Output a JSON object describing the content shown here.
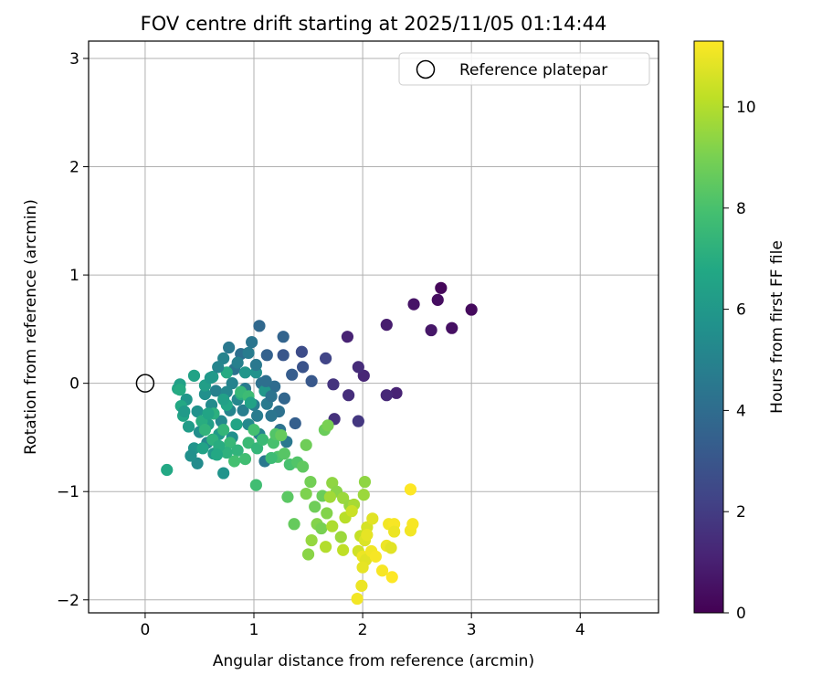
{
  "chart_data": {
    "type": "scatter",
    "title": "FOV centre drift starting at 2025/11/05 01:14:44",
    "xlabel": "Angular distance from reference (arcmin)",
    "ylabel": "Rotation from reference (arcmin)",
    "xlim": [
      -0.52,
      4.72
    ],
    "ylim": [
      -2.12,
      3.16
    ],
    "xticks": [
      0,
      1,
      2,
      3,
      4
    ],
    "yticks": [
      -2,
      -1,
      0,
      1,
      2,
      3
    ],
    "xtick_labels": [
      "0",
      "1",
      "2",
      "3",
      "4"
    ],
    "ytick_labels": [
      "−2",
      "−1",
      "0",
      "1",
      "2",
      "3"
    ],
    "grid": true,
    "legend": {
      "position": "top-right",
      "label": "Reference platepar"
    },
    "reference_point": {
      "x": 0,
      "y": 0
    },
    "colorbar": {
      "label": "Hours from first FF file",
      "min": 0,
      "max": 11.3,
      "ticks": [
        0,
        2,
        4,
        6,
        8,
        10
      ],
      "tick_labels": [
        "0",
        "2",
        "4",
        "6",
        "8",
        "10"
      ],
      "colormap": "viridis"
    },
    "points": [
      {
        "x": 2.72,
        "y": 0.88,
        "t": 0.2
      },
      {
        "x": 3.0,
        "y": 0.68,
        "t": 0.3
      },
      {
        "x": 2.69,
        "y": 0.77,
        "t": 0.4
      },
      {
        "x": 2.47,
        "y": 0.73,
        "t": 0.6
      },
      {
        "x": 2.82,
        "y": 0.51,
        "t": 0.5
      },
      {
        "x": 2.63,
        "y": 0.49,
        "t": 0.7
      },
      {
        "x": 2.22,
        "y": 0.54,
        "t": 0.9
      },
      {
        "x": 1.86,
        "y": 0.43,
        "t": 1.1
      },
      {
        "x": 2.01,
        "y": 0.07,
        "t": 1.2
      },
      {
        "x": 1.96,
        "y": 0.15,
        "t": 1.4
      },
      {
        "x": 2.31,
        "y": -0.09,
        "t": 1.1
      },
      {
        "x": 2.22,
        "y": -0.11,
        "t": 1.3
      },
      {
        "x": 1.73,
        "y": -0.01,
        "t": 1.7
      },
      {
        "x": 1.87,
        "y": -0.11,
        "t": 1.5
      },
      {
        "x": 1.74,
        "y": -0.33,
        "t": 1.6
      },
      {
        "x": 1.96,
        "y": -0.35,
        "t": 1.8
      },
      {
        "x": 1.66,
        "y": 0.23,
        "t": 2.3
      },
      {
        "x": 1.44,
        "y": 0.29,
        "t": 2.6
      },
      {
        "x": 1.45,
        "y": 0.15,
        "t": 2.9
      },
      {
        "x": 1.53,
        "y": 0.02,
        "t": 3.1
      },
      {
        "x": 1.27,
        "y": 0.26,
        "t": 3.0
      },
      {
        "x": 1.35,
        "y": 0.08,
        "t": 3.3
      },
      {
        "x": 1.38,
        "y": -0.37,
        "t": 3.4
      },
      {
        "x": 1.27,
        "y": 0.43,
        "t": 3.6
      },
      {
        "x": 1.12,
        "y": 0.26,
        "t": 3.5
      },
      {
        "x": 1.05,
        "y": 0.53,
        "t": 3.8
      },
      {
        "x": 1.28,
        "y": -0.14,
        "t": 3.7
      },
      {
        "x": 1.19,
        "y": -0.03,
        "t": 4.0
      },
      {
        "x": 1.07,
        "y": 0.0,
        "t": 4.2
      },
      {
        "x": 0.88,
        "y": 0.27,
        "t": 4.1
      },
      {
        "x": 0.98,
        "y": 0.38,
        "t": 4.4
      },
      {
        "x": 0.77,
        "y": 0.33,
        "t": 4.5
      },
      {
        "x": 0.82,
        "y": 0.13,
        "t": 4.3
      },
      {
        "x": 0.92,
        "y": -0.05,
        "t": 4.6
      },
      {
        "x": 1.0,
        "y": -0.2,
        "t": 4.8
      },
      {
        "x": 0.72,
        "y": 0.23,
        "t": 5.0
      },
      {
        "x": 0.65,
        "y": -0.07,
        "t": 4.9
      },
      {
        "x": 0.85,
        "y": -0.15,
        "t": 5.2
      },
      {
        "x": 1.12,
        "y": -0.19,
        "t": 4.6
      },
      {
        "x": 1.23,
        "y": -0.26,
        "t": 4.2
      },
      {
        "x": 1.16,
        "y": -0.3,
        "t": 4.4
      },
      {
        "x": 1.03,
        "y": -0.3,
        "t": 4.7
      },
      {
        "x": 0.78,
        "y": -0.25,
        "t": 5.1
      },
      {
        "x": 0.7,
        "y": -0.35,
        "t": 5.3
      },
      {
        "x": 0.61,
        "y": -0.2,
        "t": 5.4
      },
      {
        "x": 0.55,
        "y": -0.1,
        "t": 5.6
      },
      {
        "x": 0.48,
        "y": -0.26,
        "t": 5.7
      },
      {
        "x": 0.38,
        "y": -0.15,
        "t": 5.9
      },
      {
        "x": 0.5,
        "y": -0.45,
        "t": 5.5
      },
      {
        "x": 0.57,
        "y": -0.55,
        "t": 5.2
      },
      {
        "x": 0.45,
        "y": -0.6,
        "t": 5.8
      },
      {
        "x": 0.63,
        "y": -0.65,
        "t": 6.0
      },
      {
        "x": 0.48,
        "y": -0.74,
        "t": 5.4
      },
      {
        "x": 0.42,
        "y": -0.67,
        "t": 5.6
      },
      {
        "x": 0.72,
        "y": -0.83,
        "t": 5.8
      },
      {
        "x": 1.1,
        "y": -0.72,
        "t": 4.5
      },
      {
        "x": 1.05,
        "y": -0.47,
        "t": 5.0
      },
      {
        "x": 1.24,
        "y": -0.43,
        "t": 4.3
      },
      {
        "x": 1.3,
        "y": -0.54,
        "t": 4.5
      },
      {
        "x": 0.95,
        "y": -0.38,
        "t": 5.3
      },
      {
        "x": 0.8,
        "y": -0.5,
        "t": 5.6
      },
      {
        "x": 0.68,
        "y": -0.47,
        "t": 6.1
      },
      {
        "x": 0.58,
        "y": -0.38,
        "t": 6.3
      },
      {
        "x": 0.4,
        "y": -0.4,
        "t": 6.2
      },
      {
        "x": 0.35,
        "y": -0.3,
        "t": 6.6
      },
      {
        "x": 0.33,
        "y": -0.21,
        "t": 6.8
      },
      {
        "x": 0.3,
        "y": -0.05,
        "t": 6.7
      },
      {
        "x": 0.32,
        "y": -0.01,
        "t": 6.4
      },
      {
        "x": 0.45,
        "y": 0.07,
        "t": 6.5
      },
      {
        "x": 0.55,
        "y": -0.02,
        "t": 6.3
      },
      {
        "x": 0.62,
        "y": 0.06,
        "t": 6.2
      },
      {
        "x": 0.75,
        "y": 0.1,
        "t": 6.9
      },
      {
        "x": 0.92,
        "y": 0.1,
        "t": 5.9
      },
      {
        "x": 1.02,
        "y": 0.1,
        "t": 5.7
      },
      {
        "x": 1.1,
        "y": -0.07,
        "t": 6.0
      },
      {
        "x": 0.88,
        "y": -0.1,
        "t": 7.0
      },
      {
        "x": 0.75,
        "y": -0.2,
        "t": 6.7
      },
      {
        "x": 0.63,
        "y": -0.28,
        "t": 7.1
      },
      {
        "x": 0.52,
        "y": -0.35,
        "t": 7.0
      },
      {
        "x": 0.55,
        "y": -0.43,
        "t": 7.3
      },
      {
        "x": 0.62,
        "y": -0.52,
        "t": 7.2
      },
      {
        "x": 0.72,
        "y": -0.43,
        "t": 7.4
      },
      {
        "x": 0.78,
        "y": -0.55,
        "t": 7.5
      },
      {
        "x": 0.85,
        "y": -0.62,
        "t": 7.3
      },
      {
        "x": 0.95,
        "y": -0.55,
        "t": 7.6
      },
      {
        "x": 1.03,
        "y": -0.6,
        "t": 7.4
      },
      {
        "x": 0.92,
        "y": -0.7,
        "t": 7.8
      },
      {
        "x": 0.82,
        "y": -0.72,
        "t": 7.9
      },
      {
        "x": 0.75,
        "y": -0.64,
        "t": 7.2
      },
      {
        "x": 0.68,
        "y": -0.58,
        "t": 7.0
      },
      {
        "x": 0.88,
        "y": -0.08,
        "t": 7.5
      },
      {
        "x": 0.95,
        "y": -0.12,
        "t": 7.7
      },
      {
        "x": 1.0,
        "y": -0.43,
        "t": 7.9
      },
      {
        "x": 1.08,
        "y": -0.52,
        "t": 7.6
      },
      {
        "x": 1.18,
        "y": -0.55,
        "t": 8.0
      },
      {
        "x": 1.22,
        "y": -0.68,
        "t": 8.1
      },
      {
        "x": 1.28,
        "y": -0.65,
        "t": 8.3
      },
      {
        "x": 1.33,
        "y": -0.75,
        "t": 8.0
      },
      {
        "x": 1.4,
        "y": -0.73,
        "t": 8.2
      },
      {
        "x": 1.45,
        "y": -0.77,
        "t": 8.5
      },
      {
        "x": 1.31,
        "y": -1.05,
        "t": 8.4
      },
      {
        "x": 1.02,
        "y": -0.94,
        "t": 7.8
      },
      {
        "x": 1.2,
        "y": -0.47,
        "t": 8.2
      },
      {
        "x": 1.16,
        "y": -0.69,
        "t": 7.7
      },
      {
        "x": 1.25,
        "y": -0.48,
        "t": 8.6
      },
      {
        "x": 1.48,
        "y": -0.57,
        "t": 8.8
      },
      {
        "x": 1.65,
        "y": -0.43,
        "t": 8.7
      },
      {
        "x": 1.68,
        "y": -0.39,
        "t": 9.0
      },
      {
        "x": 1.52,
        "y": -0.91,
        "t": 8.9
      },
      {
        "x": 1.37,
        "y": -1.3,
        "t": 8.6
      },
      {
        "x": 1.48,
        "y": -1.02,
        "t": 9.1
      },
      {
        "x": 1.56,
        "y": -1.14,
        "t": 8.8
      },
      {
        "x": 1.63,
        "y": -1.04,
        "t": 8.7
      },
      {
        "x": 1.67,
        "y": -1.2,
        "t": 9.2
      },
      {
        "x": 1.72,
        "y": -0.92,
        "t": 9.4
      },
      {
        "x": 1.76,
        "y": -1.0,
        "t": 9.3
      },
      {
        "x": 1.82,
        "y": -1.06,
        "t": 9.6
      },
      {
        "x": 1.88,
        "y": -1.13,
        "t": 9.5
      },
      {
        "x": 1.92,
        "y": -1.12,
        "t": 9.8
      },
      {
        "x": 2.02,
        "y": -0.91,
        "t": 9.4
      },
      {
        "x": 2.01,
        "y": -1.03,
        "t": 9.6
      },
      {
        "x": 1.7,
        "y": -1.05,
        "t": 9.7
      },
      {
        "x": 1.58,
        "y": -1.3,
        "t": 9.2
      },
      {
        "x": 1.62,
        "y": -1.34,
        "t": 9.0
      },
      {
        "x": 1.53,
        "y": -1.45,
        "t": 9.5
      },
      {
        "x": 1.72,
        "y": -1.32,
        "t": 9.9
      },
      {
        "x": 1.8,
        "y": -1.42,
        "t": 9.6
      },
      {
        "x": 1.66,
        "y": -1.51,
        "t": 10.0
      },
      {
        "x": 1.5,
        "y": -1.58,
        "t": 9.3
      },
      {
        "x": 1.82,
        "y": -1.54,
        "t": 10.2
      },
      {
        "x": 1.84,
        "y": -1.24,
        "t": 10.1
      },
      {
        "x": 1.9,
        "y": -1.18,
        "t": 10.4
      },
      {
        "x": 1.98,
        "y": -1.41,
        "t": 10.3
      },
      {
        "x": 2.04,
        "y": -1.33,
        "t": 10.6
      },
      {
        "x": 2.09,
        "y": -1.25,
        "t": 10.8
      },
      {
        "x": 2.02,
        "y": -1.45,
        "t": 10.7
      },
      {
        "x": 2.04,
        "y": -1.4,
        "t": 10.9
      },
      {
        "x": 1.96,
        "y": -1.55,
        "t": 10.5
      },
      {
        "x": 2.0,
        "y": -1.6,
        "t": 11.0
      },
      {
        "x": 2.03,
        "y": -1.63,
        "t": 10.8
      },
      {
        "x": 2.08,
        "y": -1.55,
        "t": 11.1
      },
      {
        "x": 2.12,
        "y": -1.6,
        "t": 11.2
      },
      {
        "x": 2.0,
        "y": -1.7,
        "t": 10.9
      },
      {
        "x": 1.99,
        "y": -1.87,
        "t": 11.0
      },
      {
        "x": 1.95,
        "y": -1.99,
        "t": 11.1
      },
      {
        "x": 2.18,
        "y": -1.73,
        "t": 11.2
      },
      {
        "x": 2.22,
        "y": -1.5,
        "t": 11.0
      },
      {
        "x": 2.26,
        "y": -1.52,
        "t": 10.8
      },
      {
        "x": 2.24,
        "y": -1.3,
        "t": 11.1
      },
      {
        "x": 2.29,
        "y": -1.3,
        "t": 11.2
      },
      {
        "x": 2.29,
        "y": -1.37,
        "t": 11.0
      },
      {
        "x": 2.27,
        "y": -1.79,
        "t": 11.3
      },
      {
        "x": 2.44,
        "y": -1.36,
        "t": 11.1
      },
      {
        "x": 2.46,
        "y": -1.3,
        "t": 11.2
      },
      {
        "x": 2.44,
        "y": -0.98,
        "t": 11.3
      },
      {
        "x": 0.2,
        "y": -0.8,
        "t": 6.8
      },
      {
        "x": 0.32,
        "y": -0.06,
        "t": 6.9
      },
      {
        "x": 0.36,
        "y": -0.26,
        "t": 6.1
      },
      {
        "x": 0.6,
        "y": 0.05,
        "t": 6.0
      },
      {
        "x": 0.8,
        "y": 0.0,
        "t": 5.0
      },
      {
        "x": 0.85,
        "y": 0.19,
        "t": 4.9
      },
      {
        "x": 0.95,
        "y": 0.28,
        "t": 4.7
      },
      {
        "x": 1.02,
        "y": 0.17,
        "t": 4.5
      },
      {
        "x": 1.11,
        "y": 0.02,
        "t": 4.1
      },
      {
        "x": 1.16,
        "y": -0.12,
        "t": 4.3
      },
      {
        "x": 0.9,
        "y": -0.25,
        "t": 4.8
      },
      {
        "x": 0.75,
        "y": -0.08,
        "t": 5.2
      },
      {
        "x": 0.67,
        "y": 0.15,
        "t": 5.1
      },
      {
        "x": 0.72,
        "y": -0.15,
        "t": 6.4
      },
      {
        "x": 0.84,
        "y": -0.38,
        "t": 6.6
      },
      {
        "x": 0.97,
        "y": -0.18,
        "t": 6.5
      },
      {
        "x": 0.53,
        "y": -0.6,
        "t": 6.5
      },
      {
        "x": 0.66,
        "y": -0.66,
        "t": 6.8
      },
      {
        "x": 0.58,
        "y": -0.28,
        "t": 6.6
      }
    ]
  }
}
